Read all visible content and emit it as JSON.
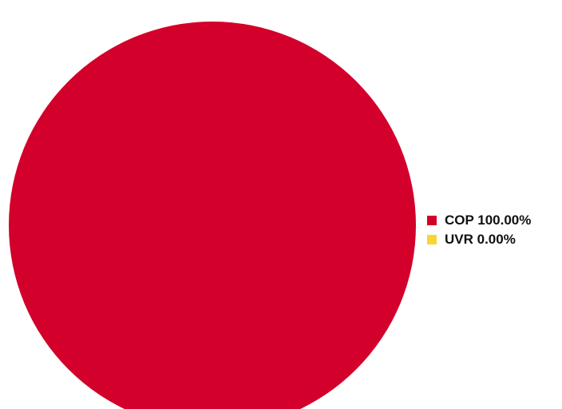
{
  "chart_data": {
    "type": "pie",
    "slices": [
      {
        "label": "COP 100.00%",
        "name": "COP",
        "value": 100.0,
        "color": "#d2002a"
      },
      {
        "label": "UVR 0.00%",
        "name": "UVR",
        "value": 0.0,
        "color": "#fad430"
      }
    ],
    "legend_position": "right"
  }
}
